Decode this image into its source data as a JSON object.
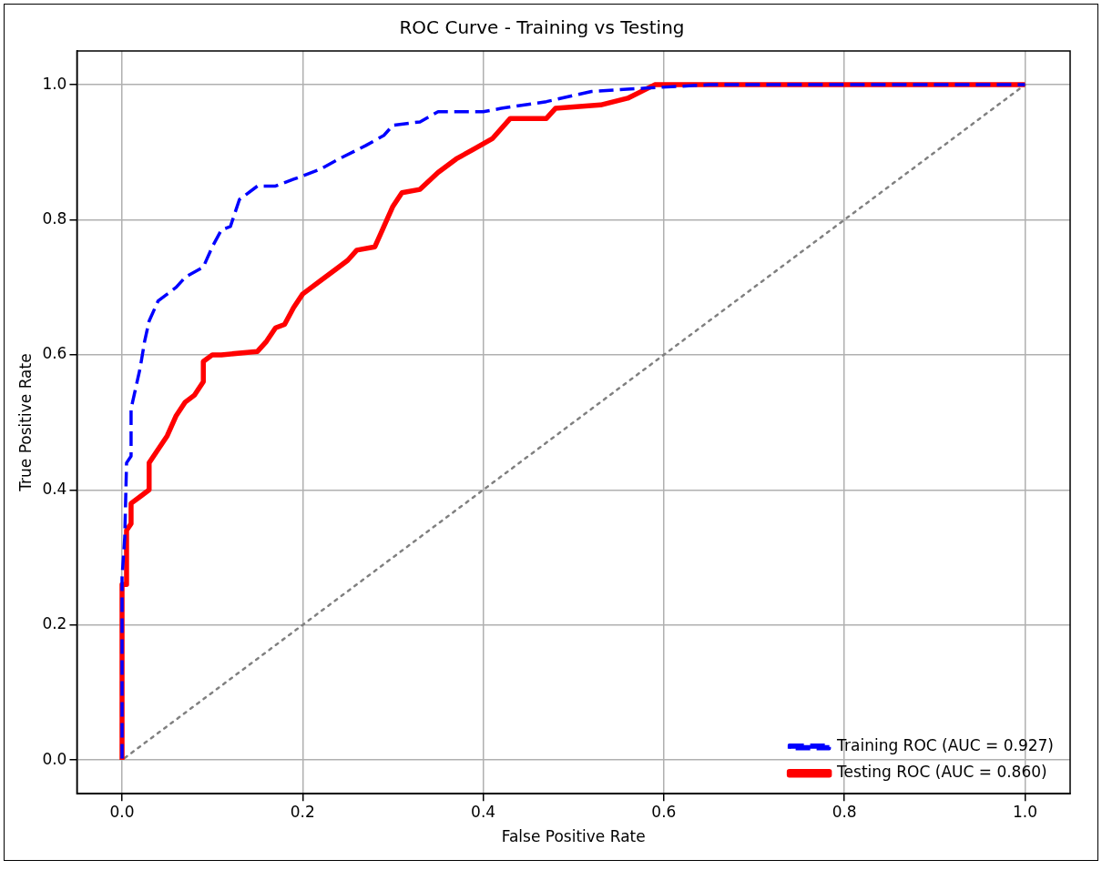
{
  "chart_data": {
    "type": "line",
    "title": "ROC Curve - Training vs Testing",
    "xlabel": "False Positive Rate",
    "ylabel": "True Positive Rate",
    "xlim": [
      -0.05,
      1.05
    ],
    "ylim": [
      -0.05,
      1.05
    ],
    "xticks": [
      {
        "value": 0,
        "label": "0.0"
      },
      {
        "value": 0.2,
        "label": "0.2"
      },
      {
        "value": 0.4,
        "label": "0.4"
      },
      {
        "value": 0.6,
        "label": "0.6"
      },
      {
        "value": 0.8,
        "label": "0.8"
      },
      {
        "value": 1,
        "label": "1.0"
      }
    ],
    "yticks": [
      {
        "value": 0,
        "label": "0.0"
      },
      {
        "value": 0.2,
        "label": "0.2"
      },
      {
        "value": 0.4,
        "label": "0.4"
      },
      {
        "value": 0.6,
        "label": "0.6"
      },
      {
        "value": 0.8,
        "label": "0.8"
      },
      {
        "value": 1,
        "label": "1.0"
      }
    ],
    "grid": true,
    "legend": "bottom right",
    "marker": "none",
    "series": [
      {
        "name": "Training ROC (AUC = 0.927)",
        "color": "#0000ff",
        "line_style": "dashed",
        "x": [
          0,
          0,
          0.003,
          0.005,
          0.01,
          0.01,
          0.015,
          0.02,
          0.025,
          0.03,
          0.04,
          0.06,
          0.07,
          0.09,
          0.1,
          0.11,
          0.12,
          0.13,
          0.15,
          0.17,
          0.19,
          0.22,
          0.24,
          0.27,
          0.29,
          0.3,
          0.33,
          0.35,
          0.4,
          0.42,
          0.47,
          0.52,
          0.58,
          0.65,
          1
        ],
        "values": [
          0,
          0.27,
          0.33,
          0.44,
          0.45,
          0.52,
          0.55,
          0.58,
          0.62,
          0.65,
          0.68,
          0.7,
          0.715,
          0.73,
          0.76,
          0.785,
          0.79,
          0.83,
          0.85,
          0.85,
          0.86,
          0.875,
          0.89,
          0.91,
          0.925,
          0.94,
          0.945,
          0.96,
          0.96,
          0.965,
          0.975,
          0.99,
          0.995,
          1,
          1
        ]
      },
      {
        "name": "Testing ROC (AUC = 0.860)",
        "color": "#ff0000",
        "line_style": "solid",
        "x": [
          0,
          0,
          0.005,
          0.005,
          0.01,
          0.01,
          0.02,
          0.03,
          0.03,
          0.04,
          0.05,
          0.06,
          0.07,
          0.08,
          0.09,
          0.09,
          0.1,
          0.11,
          0.15,
          0.16,
          0.17,
          0.18,
          0.19,
          0.2,
          0.22,
          0.24,
          0.25,
          0.26,
          0.28,
          0.29,
          0.3,
          0.31,
          0.33,
          0.35,
          0.37,
          0.39,
          0.41,
          0.43,
          0.47,
          0.48,
          0.53,
          0.56,
          0.59,
          0.73,
          1
        ],
        "values": [
          0,
          0.26,
          0.26,
          0.34,
          0.35,
          0.38,
          0.39,
          0.4,
          0.44,
          0.46,
          0.48,
          0.51,
          0.53,
          0.54,
          0.56,
          0.59,
          0.6,
          0.6,
          0.605,
          0.62,
          0.64,
          0.645,
          0.67,
          0.69,
          0.71,
          0.73,
          0.74,
          0.755,
          0.76,
          0.79,
          0.82,
          0.84,
          0.845,
          0.87,
          0.89,
          0.905,
          0.92,
          0.95,
          0.95,
          0.965,
          0.97,
          0.98,
          1,
          1,
          1
        ]
      },
      {
        "color": "#808080",
        "line_style": "dotted",
        "x": [
          0,
          1
        ],
        "values": [
          0,
          1
        ]
      }
    ]
  }
}
